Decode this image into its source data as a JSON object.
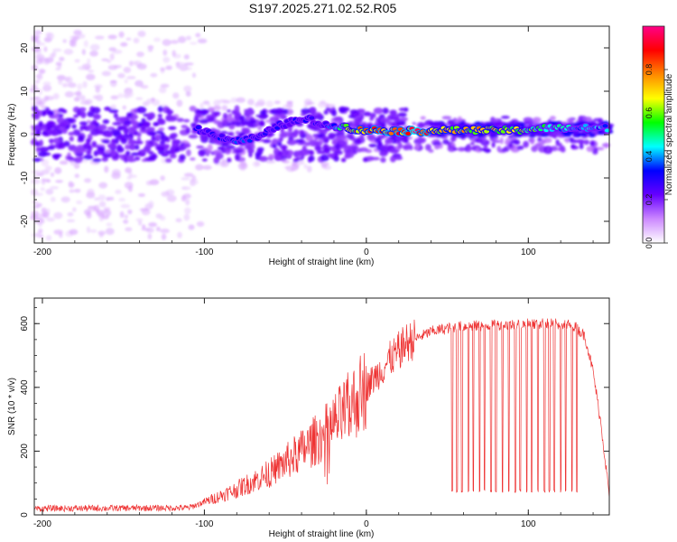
{
  "figure": {
    "title": "S197.2025.271.02.52.R05"
  },
  "chart_data": [
    {
      "type": "heatmap",
      "xlabel": "Height of straight line (km)",
      "ylabel": "Frequency (Hz)",
      "xlim": [
        -205,
        150
      ],
      "ylim": [
        -25,
        25
      ],
      "xticks": [
        -200,
        -100,
        0,
        100
      ],
      "yticks": [
        -20,
        -10,
        0,
        10,
        20
      ],
      "colorbar": {
        "label": "Normalized spectral amplitude",
        "range": [
          0,
          1
        ],
        "ticks": [
          "0.0",
          "0.2",
          "0.4",
          "0.6",
          "0.8"
        ],
        "colors": [
          "#ffffff",
          "#cc88ff",
          "#6600ff",
          "#0000ff",
          "#00ffff",
          "#00ff00",
          "#ffff00",
          "#ff8800",
          "#ff0000",
          "#ff0088"
        ]
      },
      "ridge": {
        "description_free": true,
        "points": [
          {
            "x": -105,
            "y": 1.5,
            "amp": 0.3
          },
          {
            "x": -95,
            "y": 0.0,
            "amp": 0.3
          },
          {
            "x": -80,
            "y": -1.5,
            "amp": 0.35
          },
          {
            "x": -65,
            "y": -0.5,
            "amp": 0.3
          },
          {
            "x": -55,
            "y": 2.0,
            "amp": 0.3
          },
          {
            "x": -45,
            "y": 3.0,
            "amp": 0.3
          },
          {
            "x": -35,
            "y": 3.5,
            "amp": 0.3
          },
          {
            "x": -25,
            "y": 2.0,
            "amp": 0.3
          },
          {
            "x": -15,
            "y": 2.0,
            "amp": 0.5
          },
          {
            "x": -5,
            "y": 1.0,
            "amp": 0.8
          },
          {
            "x": 5,
            "y": 1.0,
            "amp": 0.85
          },
          {
            "x": 20,
            "y": 0.8,
            "amp": 0.9
          },
          {
            "x": 35,
            "y": 0.8,
            "amp": 0.95
          },
          {
            "x": 50,
            "y": 1.0,
            "amp": 0.7
          },
          {
            "x": 65,
            "y": 1.0,
            "amp": 0.75
          },
          {
            "x": 80,
            "y": 1.0,
            "amp": 0.7
          },
          {
            "x": 95,
            "y": 1.0,
            "amp": 0.65
          },
          {
            "x": 110,
            "y": 1.5,
            "amp": 0.5
          },
          {
            "x": 125,
            "y": 1.5,
            "amp": 0.45
          },
          {
            "x": 140,
            "y": 1.5,
            "amp": 0.45
          },
          {
            "x": 150,
            "y": 1.5,
            "amp": 0.4
          }
        ]
      }
    },
    {
      "type": "line",
      "xlabel": "Height of straight line (km)",
      "ylabel": "SNR (10 * v/v)",
      "xlim": [
        -205,
        150
      ],
      "ylim": [
        0,
        680
      ],
      "xticks": [
        -200,
        -100,
        0,
        100
      ],
      "yticks": [
        0,
        200,
        400,
        600
      ],
      "series": [
        {
          "color": "#ee3333",
          "envelope": [
            {
              "x": -205,
              "y": 20
            },
            {
              "x": -110,
              "y": 22
            },
            {
              "x": -100,
              "y": 40
            },
            {
              "x": -80,
              "y": 80
            },
            {
              "x": -60,
              "y": 130
            },
            {
              "x": -40,
              "y": 200
            },
            {
              "x": -25,
              "y": 260
            },
            {
              "x": -15,
              "y": 310
            },
            {
              "x": -5,
              "y": 370
            },
            {
              "x": 5,
              "y": 430
            },
            {
              "x": 15,
              "y": 490
            },
            {
              "x": 25,
              "y": 540
            },
            {
              "x": 40,
              "y": 575
            },
            {
              "x": 55,
              "y": 590
            },
            {
              "x": 80,
              "y": 595
            },
            {
              "x": 110,
              "y": 600
            },
            {
              "x": 128,
              "y": 595
            },
            {
              "x": 135,
              "y": 560
            },
            {
              "x": 140,
              "y": 450
            },
            {
              "x": 145,
              "y": 280
            },
            {
              "x": 150,
              "y": 60
            }
          ],
          "dropouts": [
            53,
            56,
            59,
            63,
            66,
            70,
            73,
            77,
            80,
            84,
            88,
            92,
            95,
            99,
            102,
            106,
            110,
            113,
            116,
            120,
            123,
            127,
            130
          ],
          "dropout_level": 70
        }
      ]
    }
  ]
}
